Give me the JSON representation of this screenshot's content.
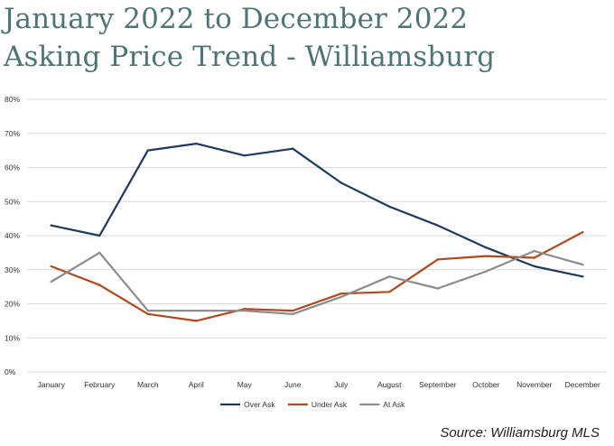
{
  "title": "January 2022 to December 2022",
  "subtitle": "Asking Price Trend - Williamsburg",
  "source": "Source: Williamsburg MLS",
  "chart_data": {
    "type": "line",
    "categories": [
      "January",
      "February",
      "March",
      "April",
      "May",
      "June",
      "July",
      "August",
      "September",
      "October",
      "November",
      "December"
    ],
    "y_ticks": [
      "0%",
      "10%",
      "20%",
      "30%",
      "40%",
      "50%",
      "60%",
      "70%",
      "80%"
    ],
    "ylim": [
      0,
      80
    ],
    "y_unit": "%",
    "grid": true,
    "legend_position": "bottom",
    "series": [
      {
        "name": "Over Ask",
        "color": "#1f3a5f",
        "values": [
          43,
          40,
          65,
          67,
          63.5,
          65.5,
          55.5,
          48.5,
          43,
          36.5,
          31,
          28
        ]
      },
      {
        "name": "Under Ask",
        "color": "#b04a1e",
        "values": [
          31,
          25.5,
          17,
          15,
          18.5,
          18,
          23,
          23.5,
          33,
          34,
          33.5,
          41
        ]
      },
      {
        "name": "At Ask",
        "color": "#8c8c8c",
        "values": [
          26.5,
          35,
          18,
          18,
          18,
          17,
          22,
          28,
          24.5,
          29.5,
          35.5,
          31.5
        ]
      }
    ]
  }
}
